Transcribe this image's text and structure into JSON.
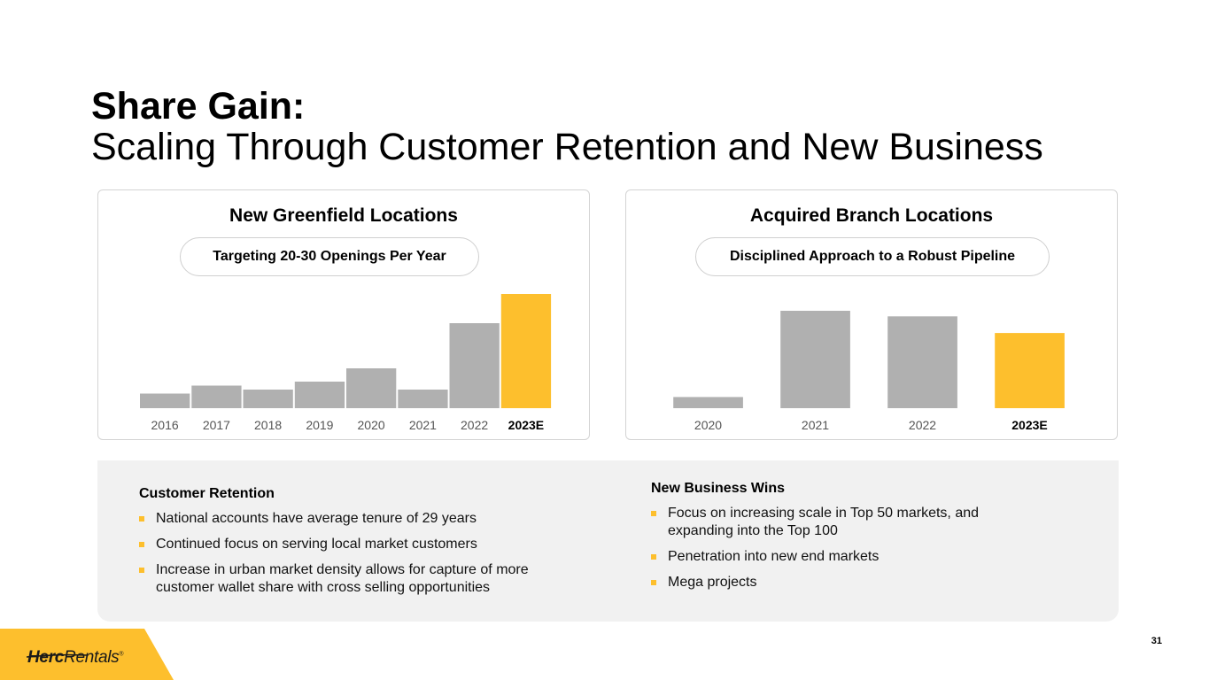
{
  "title": {
    "line1": "Share Gain:",
    "line2": "Scaling Through Customer Retention and New Business"
  },
  "colors": {
    "accent": "#fdbf2d",
    "bar": "#b0b0b0",
    "tick": "#555555"
  },
  "chart_data": [
    {
      "type": "bar",
      "title": "New Greenfield Locations",
      "subtitle": "Targeting 20-30 Openings Per Year",
      "categories": [
        "2016",
        "2017",
        "2018",
        "2019",
        "2020",
        "2021",
        "2022",
        "2023E"
      ],
      "values": [
        5.5,
        8.5,
        7,
        10,
        15,
        7,
        32,
        43
      ],
      "highlight": "2023E",
      "ylim": [
        0,
        43
      ],
      "xlabel": "",
      "ylabel": ""
    },
    {
      "type": "bar",
      "title": "Acquired Branch Locations",
      "subtitle": "Disciplined Approach to a Robust Pipeline",
      "categories": [
        "2020",
        "2021",
        "2022",
        "2023E"
      ],
      "values": [
        4,
        35,
        33,
        27
      ],
      "highlight": "2023E",
      "ylim": [
        0,
        35
      ],
      "xlabel": "",
      "ylabel": ""
    }
  ],
  "retention": {
    "heading": "Customer Retention",
    "items": [
      "National accounts have average tenure of 29 years",
      "Continued focus on serving local market customers",
      "Increase in urban market density allows for capture of more customer wallet share with cross selling opportunities"
    ]
  },
  "new_business": {
    "heading": "New Business Wins",
    "items": [
      "Focus on increasing scale in Top 50 markets, and expanding into the Top 100",
      "Penetration into new end markets",
      "Mega projects"
    ]
  },
  "logo": {
    "herc": "Herc",
    "rentals": "Rentals",
    "reg": "®"
  },
  "page_number": "31"
}
